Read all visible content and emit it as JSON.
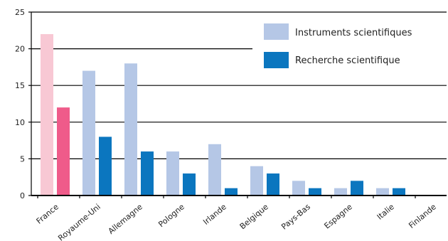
{
  "chart_data": {
    "type": "bar",
    "title": "",
    "xlabel": "",
    "ylabel": "",
    "categories": [
      "France",
      "Royaume-Uni",
      "Allemagne",
      "Pologne",
      "Irlande",
      "Belgique",
      "Pays-Bas",
      "Espagne",
      "Italie",
      "Finlande"
    ],
    "series": [
      {
        "name": "Instruments scientifiques",
        "values": [
          22,
          17,
          18,
          6,
          7,
          4,
          2,
          1,
          1,
          0
        ],
        "color": "#b5c7e6",
        "highlight_color": "#f8c8d4"
      },
      {
        "name": "Recherche scientifique",
        "values": [
          12,
          8,
          6,
          3,
          1,
          3,
          1,
          2,
          1,
          0
        ],
        "color": "#0b76bf",
        "highlight_color": "#ef5b8a"
      }
    ],
    "highlight_category": "France",
    "ylim": [
      0,
      25
    ],
    "yticks": [
      0,
      5,
      10,
      15,
      20,
      25
    ],
    "grid": true,
    "legend_position": "top-right"
  }
}
